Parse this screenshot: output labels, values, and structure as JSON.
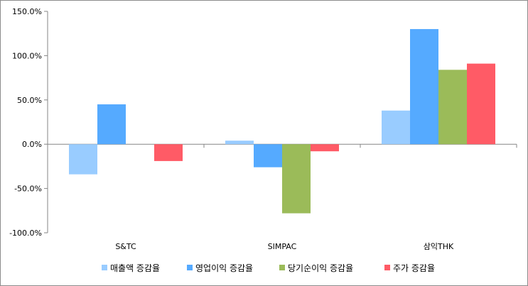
{
  "chart_data": {
    "type": "bar",
    "title": "",
    "xlabel": "",
    "ylabel": "",
    "categories": [
      "S&TC",
      "SIMPAC",
      "삼익THK"
    ],
    "ylim": [
      -100,
      150
    ],
    "yticks": [
      150,
      100,
      50,
      0,
      -50,
      -100
    ],
    "ytick_labels": [
      "150.0%",
      "100.0%",
      "50.0%",
      "0.0%",
      "-50.0%",
      "-100.0%"
    ],
    "grid": false,
    "legend_position": "bottom",
    "series": [
      {
        "name": "매출액 증감율",
        "color": "#99ccff",
        "values": [
          -34,
          4,
          38
        ]
      },
      {
        "name": "영업이익 증감율",
        "color": "#55aaff",
        "values": [
          45,
          -26,
          130
        ]
      },
      {
        "name": "당기순이익 증감율",
        "color": "#9bbb59",
        "values": [
          0,
          -78,
          84
        ]
      },
      {
        "name": "주가 증감율",
        "color": "#ff5b66",
        "values": [
          -19,
          -8,
          91
        ]
      }
    ]
  }
}
